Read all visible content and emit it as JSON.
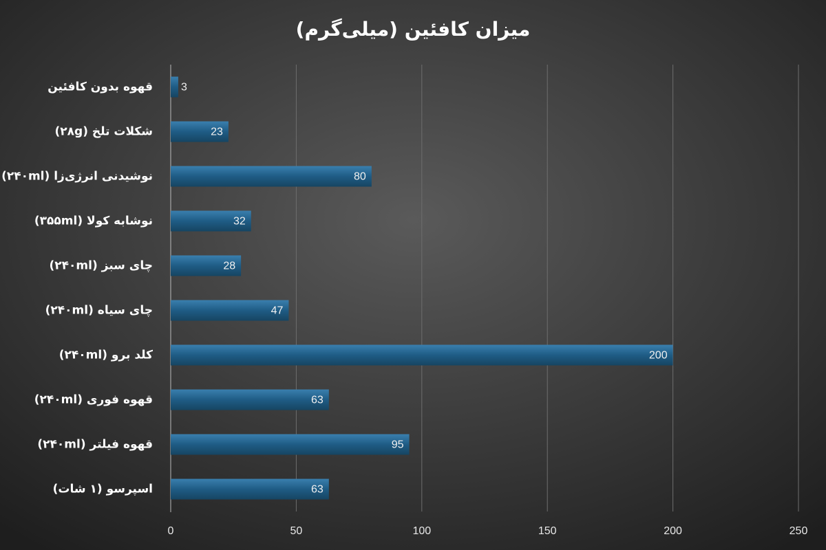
{
  "chart_data": {
    "type": "barh",
    "title": "میزان کافئین (میلی‌گرم)",
    "categories": [
      "قهوه بدون کافئین",
      "شکلات تلخ (۲۸g)",
      "نوشیدنی انرژی‌زا (۲۴۰ml)",
      "نوشابه کولا (۳۵۵ml)",
      "چای سبز (۲۴۰ml)",
      "چای سیاه (۲۴۰ml)",
      "کلد برو (۲۴۰ml)",
      "قهوه فوری (۲۴۰ml)",
      "قهوه فیلتر (۲۴۰ml)",
      "اسپرسو (۱ شات)"
    ],
    "values": [
      3,
      23,
      80,
      32,
      28,
      47,
      200,
      63,
      95,
      63
    ],
    "color": "#1f5c85",
    "xlim": [
      0,
      250
    ],
    "xticks": [
      0,
      50,
      100,
      150,
      200,
      250
    ],
    "grid": true
  }
}
